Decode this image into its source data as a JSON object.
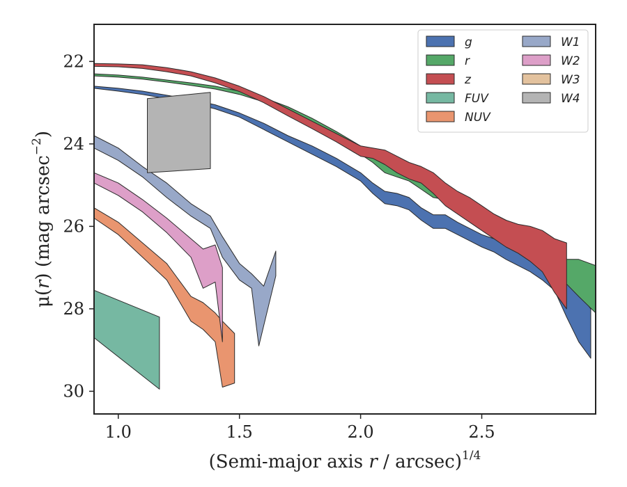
{
  "chart_data": {
    "type": "area",
    "xlabel_main": "(Semi-major axis ",
    "xlabel_var": "r",
    "xlabel_unit": " / arcsec)",
    "xlabel_sup": "1/4",
    "ylabel_pre": "μ(",
    "ylabel_var": "r",
    "ylabel_mid": ") (mag arcsec",
    "ylabel_sup": "−2",
    "ylabel_post": ")",
    "xlim": [
      0.9,
      2.97
    ],
    "ylim": [
      30.55,
      21.1
    ],
    "y_inverted": true,
    "x_ticks": [
      1.0,
      1.5,
      2.0,
      2.5
    ],
    "x_tick_labels": [
      "1.0",
      "1.5",
      "2.0",
      "2.5"
    ],
    "y_ticks": [
      22,
      24,
      26,
      28,
      30
    ],
    "y_tick_labels": [
      "22",
      "24",
      "26",
      "28",
      "30"
    ],
    "legend": {
      "position": "top-right",
      "columns": 2
    },
    "series": [
      {
        "name": "g",
        "color": "#4c72b0",
        "upper": [
          [
            0.9,
            22.6
          ],
          [
            1.0,
            22.65
          ],
          [
            1.1,
            22.72
          ],
          [
            1.2,
            22.82
          ],
          [
            1.3,
            22.92
          ],
          [
            1.4,
            23.05
          ],
          [
            1.5,
            23.25
          ],
          [
            1.6,
            23.5
          ],
          [
            1.7,
            23.8
          ],
          [
            1.8,
            24.05
          ],
          [
            1.9,
            24.35
          ],
          [
            2.0,
            24.7
          ],
          [
            2.05,
            24.95
          ],
          [
            2.1,
            25.15
          ],
          [
            2.15,
            25.2
          ],
          [
            2.2,
            25.3
          ],
          [
            2.25,
            25.55
          ],
          [
            2.3,
            25.72
          ],
          [
            2.35,
            25.72
          ],
          [
            2.4,
            25.9
          ],
          [
            2.45,
            26.05
          ],
          [
            2.5,
            26.2
          ],
          [
            2.55,
            26.3
          ],
          [
            2.6,
            26.45
          ],
          [
            2.65,
            26.6
          ],
          [
            2.7,
            26.72
          ],
          [
            2.75,
            26.85
          ],
          [
            2.8,
            26.95
          ],
          [
            2.85,
            27.2
          ],
          [
            2.9,
            27.6
          ],
          [
            2.95,
            28.0
          ]
        ],
        "lower": [
          [
            0.9,
            22.65
          ],
          [
            1.0,
            22.72
          ],
          [
            1.1,
            22.8
          ],
          [
            1.2,
            22.9
          ],
          [
            1.3,
            23.0
          ],
          [
            1.4,
            23.15
          ],
          [
            1.5,
            23.35
          ],
          [
            1.6,
            23.65
          ],
          [
            1.7,
            23.95
          ],
          [
            1.8,
            24.25
          ],
          [
            1.9,
            24.55
          ],
          [
            2.0,
            24.9
          ],
          [
            2.05,
            25.2
          ],
          [
            2.1,
            25.45
          ],
          [
            2.15,
            25.5
          ],
          [
            2.2,
            25.6
          ],
          [
            2.25,
            25.85
          ],
          [
            2.3,
            26.05
          ],
          [
            2.35,
            26.05
          ],
          [
            2.4,
            26.2
          ],
          [
            2.45,
            26.35
          ],
          [
            2.5,
            26.5
          ],
          [
            2.55,
            26.62
          ],
          [
            2.6,
            26.8
          ],
          [
            2.65,
            26.95
          ],
          [
            2.7,
            27.1
          ],
          [
            2.75,
            27.3
          ],
          [
            2.8,
            27.55
          ],
          [
            2.85,
            28.2
          ],
          [
            2.9,
            28.8
          ],
          [
            2.95,
            29.2
          ]
        ]
      },
      {
        "name": "r",
        "color": "#55a868",
        "upper": [
          [
            0.9,
            22.3
          ],
          [
            1.0,
            22.33
          ],
          [
            1.1,
            22.38
          ],
          [
            1.2,
            22.45
          ],
          [
            1.3,
            22.52
          ],
          [
            1.4,
            22.6
          ],
          [
            1.5,
            22.72
          ],
          [
            1.6,
            22.88
          ],
          [
            1.7,
            23.1
          ],
          [
            1.8,
            23.38
          ],
          [
            1.9,
            23.7
          ],
          [
            2.0,
            24.05
          ],
          [
            2.05,
            24.25
          ],
          [
            2.1,
            24.45
          ],
          [
            2.15,
            24.55
          ],
          [
            2.2,
            24.65
          ],
          [
            2.25,
            24.85
          ],
          [
            2.3,
            25.0
          ],
          [
            2.35,
            25.05
          ],
          [
            2.4,
            25.2
          ],
          [
            2.45,
            25.4
          ],
          [
            2.5,
            25.55
          ],
          [
            2.55,
            25.7
          ],
          [
            2.6,
            25.85
          ],
          [
            2.65,
            26.0
          ],
          [
            2.7,
            26.15
          ],
          [
            2.75,
            26.3
          ],
          [
            2.8,
            26.5
          ],
          [
            2.85,
            26.8
          ],
          [
            2.9,
            26.8
          ],
          [
            2.97,
            26.95
          ]
        ],
        "lower": [
          [
            0.9,
            22.35
          ],
          [
            1.0,
            22.38
          ],
          [
            1.1,
            22.43
          ],
          [
            1.2,
            22.5
          ],
          [
            1.3,
            22.58
          ],
          [
            1.4,
            22.67
          ],
          [
            1.5,
            22.8
          ],
          [
            1.6,
            22.98
          ],
          [
            1.7,
            23.22
          ],
          [
            1.8,
            23.52
          ],
          [
            1.9,
            23.85
          ],
          [
            2.0,
            24.25
          ],
          [
            2.05,
            24.45
          ],
          [
            2.1,
            24.7
          ],
          [
            2.15,
            24.8
          ],
          [
            2.2,
            24.9
          ],
          [
            2.25,
            25.1
          ],
          [
            2.3,
            25.3
          ],
          [
            2.35,
            25.35
          ],
          [
            2.4,
            25.5
          ],
          [
            2.45,
            25.7
          ],
          [
            2.5,
            25.88
          ],
          [
            2.55,
            26.05
          ],
          [
            2.6,
            26.22
          ],
          [
            2.65,
            26.4
          ],
          [
            2.7,
            26.6
          ],
          [
            2.75,
            26.8
          ],
          [
            2.8,
            27.1
          ],
          [
            2.85,
            27.4
          ],
          [
            2.9,
            27.7
          ],
          [
            2.97,
            28.1
          ]
        ]
      },
      {
        "name": "z",
        "color": "#c44e52",
        "upper": [
          [
            0.9,
            22.05
          ],
          [
            1.0,
            22.06
          ],
          [
            1.1,
            22.08
          ],
          [
            1.2,
            22.15
          ],
          [
            1.3,
            22.25
          ],
          [
            1.4,
            22.4
          ],
          [
            1.5,
            22.6
          ],
          [
            1.6,
            22.85
          ],
          [
            1.7,
            23.15
          ],
          [
            1.8,
            23.45
          ],
          [
            1.9,
            23.75
          ],
          [
            2.0,
            24.05
          ],
          [
            2.05,
            24.1
          ],
          [
            2.1,
            24.15
          ],
          [
            2.15,
            24.3
          ],
          [
            2.2,
            24.45
          ],
          [
            2.25,
            24.55
          ],
          [
            2.3,
            24.7
          ],
          [
            2.35,
            24.95
          ],
          [
            2.4,
            25.15
          ],
          [
            2.45,
            25.3
          ],
          [
            2.5,
            25.5
          ],
          [
            2.55,
            25.7
          ],
          [
            2.6,
            25.85
          ],
          [
            2.65,
            25.95
          ],
          [
            2.7,
            26.0
          ],
          [
            2.75,
            26.1
          ],
          [
            2.8,
            26.3
          ],
          [
            2.85,
            26.4
          ]
        ],
        "lower": [
          [
            0.9,
            22.12
          ],
          [
            1.0,
            22.13
          ],
          [
            1.1,
            22.17
          ],
          [
            1.2,
            22.25
          ],
          [
            1.3,
            22.35
          ],
          [
            1.4,
            22.52
          ],
          [
            1.5,
            22.73
          ],
          [
            1.6,
            23.0
          ],
          [
            1.7,
            23.32
          ],
          [
            1.8,
            23.63
          ],
          [
            1.9,
            23.95
          ],
          [
            2.0,
            24.3
          ],
          [
            2.05,
            24.35
          ],
          [
            2.1,
            24.5
          ],
          [
            2.15,
            24.7
          ],
          [
            2.2,
            24.85
          ],
          [
            2.25,
            24.95
          ],
          [
            2.3,
            25.2
          ],
          [
            2.35,
            25.5
          ],
          [
            2.4,
            25.7
          ],
          [
            2.45,
            25.9
          ],
          [
            2.5,
            26.1
          ],
          [
            2.55,
            26.3
          ],
          [
            2.6,
            26.5
          ],
          [
            2.65,
            26.65
          ],
          [
            2.7,
            26.85
          ],
          [
            2.75,
            27.1
          ],
          [
            2.8,
            27.6
          ],
          [
            2.85,
            28.0
          ]
        ]
      },
      {
        "name": "FUV",
        "color": "#76b8a2",
        "upper": [
          [
            0.9,
            27.55
          ],
          [
            1.17,
            28.2
          ]
        ],
        "lower": [
          [
            0.9,
            28.7
          ],
          [
            1.17,
            29.95
          ]
        ]
      },
      {
        "name": "NUV",
        "color": "#e9956f",
        "upper": [
          [
            0.9,
            25.55
          ],
          [
            1.0,
            25.9
          ],
          [
            1.1,
            26.4
          ],
          [
            1.2,
            26.9
          ],
          [
            1.25,
            27.3
          ],
          [
            1.3,
            27.7
          ],
          [
            1.35,
            27.85
          ],
          [
            1.4,
            28.1
          ],
          [
            1.43,
            28.3
          ],
          [
            1.48,
            28.6
          ]
        ],
        "lower": [
          [
            0.9,
            25.8
          ],
          [
            1.0,
            26.2
          ],
          [
            1.1,
            26.75
          ],
          [
            1.2,
            27.3
          ],
          [
            1.25,
            27.8
          ],
          [
            1.3,
            28.3
          ],
          [
            1.35,
            28.5
          ],
          [
            1.4,
            28.8
          ],
          [
            1.43,
            29.9
          ],
          [
            1.48,
            29.8
          ]
        ]
      },
      {
        "name": "W1",
        "color": "#98a8c8",
        "upper": [
          [
            0.9,
            23.8
          ],
          [
            1.0,
            24.1
          ],
          [
            1.1,
            24.55
          ],
          [
            1.2,
            24.95
          ],
          [
            1.3,
            25.45
          ],
          [
            1.38,
            25.75
          ],
          [
            1.43,
            26.25
          ],
          [
            1.5,
            26.9
          ],
          [
            1.55,
            27.15
          ],
          [
            1.6,
            27.45
          ],
          [
            1.65,
            26.6
          ]
        ],
        "lower": [
          [
            0.9,
            24.1
          ],
          [
            1.0,
            24.4
          ],
          [
            1.1,
            24.8
          ],
          [
            1.2,
            25.3
          ],
          [
            1.3,
            25.75
          ],
          [
            1.38,
            26.05
          ],
          [
            1.43,
            26.75
          ],
          [
            1.5,
            27.3
          ],
          [
            1.55,
            27.5
          ],
          [
            1.58,
            28.9
          ],
          [
            1.65,
            27.2
          ]
        ]
      },
      {
        "name": "W2",
        "color": "#dd9fc8",
        "upper": [
          [
            0.9,
            24.7
          ],
          [
            1.0,
            24.95
          ],
          [
            1.1,
            25.35
          ],
          [
            1.2,
            25.8
          ],
          [
            1.3,
            26.3
          ],
          [
            1.35,
            26.55
          ],
          [
            1.4,
            26.45
          ],
          [
            1.43,
            27.0
          ]
        ],
        "lower": [
          [
            0.9,
            24.95
          ],
          [
            1.0,
            25.25
          ],
          [
            1.1,
            25.65
          ],
          [
            1.2,
            26.15
          ],
          [
            1.3,
            26.75
          ],
          [
            1.35,
            27.5
          ],
          [
            1.4,
            27.35
          ],
          [
            1.43,
            28.8
          ]
        ]
      },
      {
        "name": "W3",
        "color": "#e3c29e",
        "upper": [],
        "lower": []
      },
      {
        "name": "W4",
        "color": "#b4b4b4",
        "upper": [
          [
            1.12,
            22.9
          ],
          [
            1.38,
            22.75
          ]
        ],
        "lower": [
          [
            1.12,
            24.7
          ],
          [
            1.38,
            24.6
          ]
        ]
      }
    ]
  }
}
